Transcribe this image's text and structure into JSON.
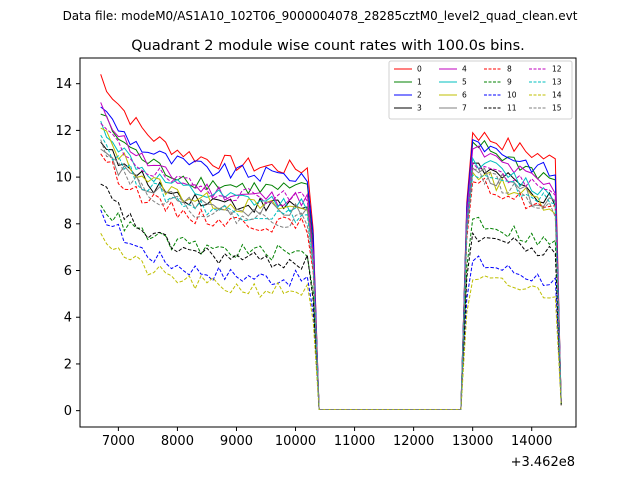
{
  "figure": {
    "suptitle": "Data file: modeM0/AS1A10_102T06_9000004078_28285cztM0_level2_quad_clean.evt",
    "title": "Quadrant 2 module wise count rates with 100.0s bins.",
    "x_offset_label": "+3.462e8"
  },
  "chart_data": {
    "type": "line",
    "title": "Quadrant 2 module wise count rates with 100.0s bins.",
    "xlabel": "",
    "ylabel": "",
    "x_offset": "+3.462e8",
    "xlim": [
      6350,
      14750
    ],
    "ylim": [
      -0.7,
      15.1
    ],
    "xticks": [
      7000,
      8000,
      9000,
      10000,
      11000,
      12000,
      13000,
      14000
    ],
    "yticks": [
      0,
      2,
      4,
      6,
      8,
      10,
      12,
      14
    ],
    "legend_position": "top-right",
    "segments": [
      {
        "x_start": 6700,
        "x_end": 10200,
        "step": 100
      },
      {
        "x_start": 12900,
        "x_end": 14500,
        "step": 100
      }
    ],
    "series": [
      {
        "name": "0",
        "color": "#ff0000",
        "style": "solid",
        "seg1_start": 14.4,
        "seg1_end": 10.3,
        "seg2_start": 11.9,
        "seg2_end": 10.5
      },
      {
        "name": "1",
        "color": "#008000",
        "style": "solid",
        "seg1_start": 12.7,
        "seg1_end": 9.4,
        "seg2_start": 11.5,
        "seg2_end": 9.6
      },
      {
        "name": "2",
        "color": "#0000ff",
        "style": "solid",
        "seg1_start": 13.0,
        "seg1_end": 10.0,
        "seg2_start": 11.6,
        "seg2_end": 9.9
      },
      {
        "name": "3",
        "color": "#000000",
        "style": "solid",
        "seg1_start": 11.5,
        "seg1_end": 8.7,
        "seg2_start": 10.6,
        "seg2_end": 8.6
      },
      {
        "name": "4",
        "color": "#bf00bf",
        "style": "solid",
        "seg1_start": 13.2,
        "seg1_end": 9.0,
        "seg2_start": 11.2,
        "seg2_end": 9.2
      },
      {
        "name": "5",
        "color": "#00bfbf",
        "style": "solid",
        "seg1_start": 12.4,
        "seg1_end": 8.8,
        "seg2_start": 10.8,
        "seg2_end": 8.9
      },
      {
        "name": "6",
        "color": "#bfbf00",
        "style": "solid",
        "seg1_start": 12.1,
        "seg1_end": 8.6,
        "seg2_start": 10.2,
        "seg2_end": 8.5
      },
      {
        "name": "7",
        "color": "#808080",
        "style": "solid",
        "seg1_start": 11.2,
        "seg1_end": 8.5,
        "seg2_start": 10.4,
        "seg2_end": 8.4
      },
      {
        "name": "8",
        "color": "#ff0000",
        "style": "dashed",
        "seg1_start": 11.0,
        "seg1_end": 7.9,
        "seg2_start": 9.8,
        "seg2_end": 8.3
      },
      {
        "name": "9",
        "color": "#008000",
        "style": "dashed",
        "seg1_start": 8.8,
        "seg1_end": 6.7,
        "seg2_start": 8.2,
        "seg2_end": 6.9
      },
      {
        "name": "10",
        "color": "#0000ff",
        "style": "dashed",
        "seg1_start": 8.6,
        "seg1_end": 5.6,
        "seg2_start": 6.4,
        "seg2_end": 5.4
      },
      {
        "name": "11",
        "color": "#000000",
        "style": "dashed",
        "seg1_start": 9.7,
        "seg1_end": 6.3,
        "seg2_start": 7.6,
        "seg2_end": 6.5
      },
      {
        "name": "12",
        "color": "#bf00bf",
        "style": "dashed",
        "seg1_start": 12.3,
        "seg1_end": 9.1,
        "seg2_start": 10.6,
        "seg2_end": 9.0
      },
      {
        "name": "13",
        "color": "#00bfbf",
        "style": "dashed",
        "seg1_start": 11.8,
        "seg1_end": 8.3,
        "seg2_start": 10.1,
        "seg2_end": 8.7
      },
      {
        "name": "14",
        "color": "#bfbf00",
        "style": "dashed",
        "seg1_start": 7.6,
        "seg1_end": 5.1,
        "seg2_start": 5.6,
        "seg2_end": 4.9
      },
      {
        "name": "15",
        "color": "#808080",
        "style": "dashed",
        "seg1_start": 11.6,
        "seg1_end": 8.1,
        "seg2_start": 10.3,
        "seg2_end": 8.2
      }
    ]
  }
}
